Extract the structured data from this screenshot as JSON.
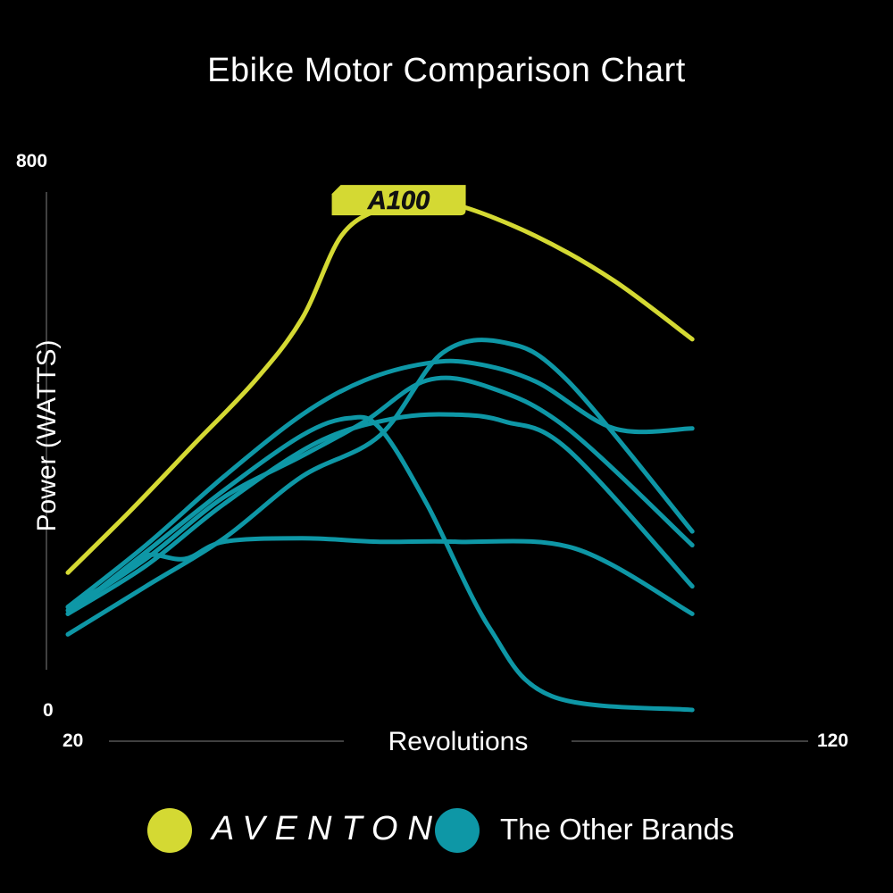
{
  "chart_data": {
    "type": "line",
    "title": "Ebike Motor Comparison Chart",
    "xlabel": "Revolutions",
    "ylabel": "Power (WATTS)",
    "xlim": [
      20,
      120
    ],
    "ylim": [
      0,
      800
    ],
    "x_tick_labels": [
      "20",
      "120"
    ],
    "y_tick_labels": [
      "0",
      "800"
    ],
    "annotation": "A100",
    "series": [
      {
        "name": "AVENTON",
        "color": "#d4d933",
        "points": [
          [
            20,
            200
          ],
          [
            28,
            290
          ],
          [
            36,
            385
          ],
          [
            44,
            480
          ],
          [
            50,
            570
          ],
          [
            55,
            690
          ],
          [
            60,
            730
          ],
          [
            64,
            740
          ],
          [
            70,
            735
          ],
          [
            80,
            690
          ],
          [
            90,
            625
          ],
          [
            100,
            540
          ]
        ]
      },
      {
        "color": "#0e97a6",
        "points": [
          [
            20,
            150
          ],
          [
            30,
            240
          ],
          [
            40,
            340
          ],
          [
            50,
            430
          ],
          [
            58,
            480
          ],
          [
            66,
            505
          ],
          [
            72,
            505
          ],
          [
            80,
            478
          ],
          [
            90,
            410
          ],
          [
            100,
            410
          ]
        ]
      },
      {
        "color": "#0e97a6",
        "points": [
          [
            20,
            140
          ],
          [
            30,
            230
          ],
          [
            40,
            320
          ],
          [
            50,
            400
          ],
          [
            56,
            425
          ],
          [
            60,
            410
          ],
          [
            66,
            300
          ],
          [
            74,
            120
          ],
          [
            82,
            20
          ],
          [
            100,
            0
          ]
        ]
      },
      {
        "color": "#0e97a6",
        "points": [
          [
            20,
            145
          ],
          [
            30,
            220
          ],
          [
            40,
            310
          ],
          [
            50,
            370
          ],
          [
            58,
            420
          ],
          [
            66,
            480
          ],
          [
            74,
            470
          ],
          [
            84,
            410
          ],
          [
            100,
            240
          ]
        ]
      },
      {
        "color": "#0e97a6",
        "points": [
          [
            20,
            150
          ],
          [
            26,
            190
          ],
          [
            30,
            225
          ],
          [
            35,
            220
          ],
          [
            40,
            245
          ],
          [
            50,
            250
          ],
          [
            60,
            245
          ],
          [
            70,
            245
          ],
          [
            85,
            235
          ],
          [
            100,
            140
          ]
        ]
      },
      {
        "color": "#0e97a6",
        "points": [
          [
            20,
            140
          ],
          [
            30,
            210
          ],
          [
            40,
            300
          ],
          [
            52,
            390
          ],
          [
            62,
            425
          ],
          [
            70,
            430
          ],
          [
            76,
            420
          ],
          [
            84,
            380
          ],
          [
            100,
            180
          ]
        ]
      },
      {
        "color": "#0e97a6",
        "points": [
          [
            20,
            110
          ],
          [
            30,
            180
          ],
          [
            40,
            250
          ],
          [
            50,
            340
          ],
          [
            60,
            400
          ],
          [
            68,
            520
          ],
          [
            76,
            535
          ],
          [
            84,
            480
          ],
          [
            100,
            260
          ]
        ]
      }
    ]
  },
  "legend": [
    {
      "label": "AVENTON",
      "color": "#d4d933"
    },
    {
      "label": "The Other Brands",
      "color": "#0e97a6"
    }
  ]
}
